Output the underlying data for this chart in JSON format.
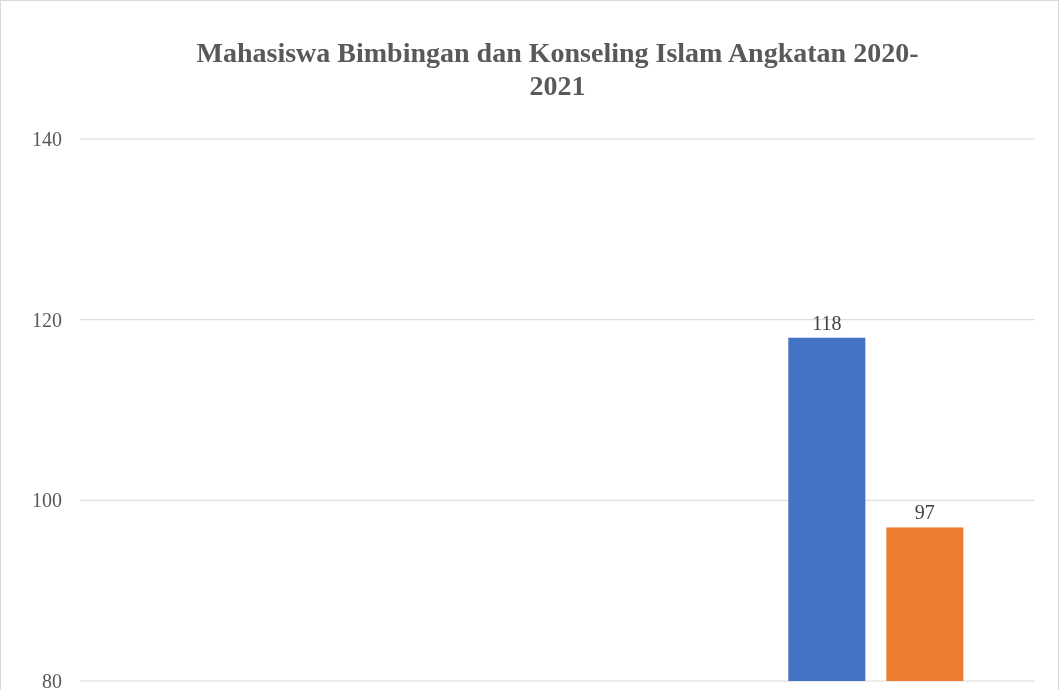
{
  "chart_data": {
    "type": "bar",
    "title": "Mahasiswa Bimbingan dan Konseling Islam Angkatan 2020-2021",
    "categories": [
      null,
      null,
      null
    ],
    "series": [
      {
        "color": "#4472c4",
        "values": [
          null,
          null,
          118
        ]
      },
      {
        "color": "#ed7d31",
        "values": [
          null,
          null,
          97
        ]
      }
    ],
    "ylim": [
      80,
      140
    ],
    "yticks": [
      80,
      100,
      120,
      140
    ],
    "grid": "y",
    "data_labels": true
  }
}
